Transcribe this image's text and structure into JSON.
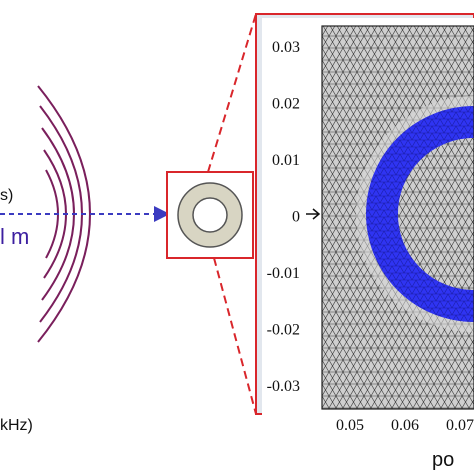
{
  "left_labels": {
    "upper_fragment": "s)",
    "distance_fragment": "l m",
    "bottom_fragment": "kHz)"
  },
  "mesh_panel": {
    "y_ticks": [
      "0.03",
      "0.02",
      "0.01",
      "0",
      "-0.01",
      "-0.02",
      "-0.03"
    ],
    "x_ticks": [
      "0.05",
      "0.06",
      "0.07"
    ],
    "x_label_fragment": "po"
  },
  "colors": {
    "wave_arcs": "#7a1f5c",
    "arrow": "#3b3bc0",
    "distance_text": "#3c1fa0",
    "highlight_box": "#d9262b",
    "ring_fill": "#d8d5c3",
    "mesh_ring": "#2b2bf0",
    "mesh_background": "#c9c9c9",
    "panel_frame": "#e2e7ee"
  }
}
